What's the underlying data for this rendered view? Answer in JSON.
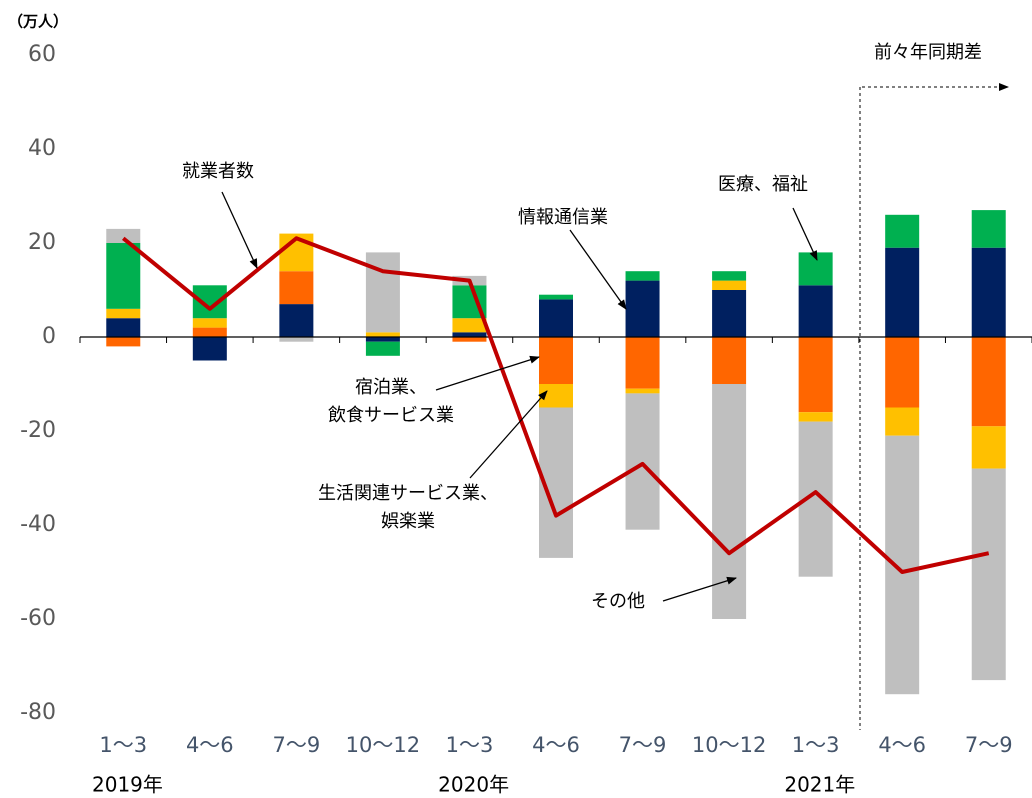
{
  "chart_data": {
    "type": "bar",
    "stacked": true,
    "y_label": "（万人）",
    "annotation": "前々年同期差",
    "categories": [
      "1～3",
      "4～6",
      "7～9",
      "10～12",
      "1～3",
      "4～6",
      "7～9",
      "10～12",
      "1～3",
      "4～6",
      "7～9"
    ],
    "x_groups": [
      "2019年",
      null,
      null,
      null,
      "2020年",
      null,
      null,
      null,
      "2021年",
      null,
      null
    ],
    "ylim": [
      -80,
      60
    ],
    "yticks": [
      -80,
      -60,
      -40,
      -20,
      0,
      20,
      40,
      60
    ],
    "series": [
      {
        "name": "情報通信業",
        "color": "#002060",
        "values": [
          4,
          -5,
          7,
          -1,
          1,
          8,
          12,
          10,
          11,
          19,
          19
        ]
      },
      {
        "name": "宿泊業、\n飲食サービス業",
        "color": "#ff6600",
        "values": [
          -2,
          2,
          7,
          0,
          -1,
          -10,
          -11,
          -10,
          -16,
          -15,
          -19
        ]
      },
      {
        "name": "生活関連サービス業、\n娯楽業",
        "color": "#ffc000",
        "values": [
          2,
          2,
          8,
          1,
          3,
          -5,
          -1,
          2,
          -2,
          -6,
          -9
        ]
      },
      {
        "name": "医療、福祉",
        "color": "#00b050",
        "values": [
          14,
          7,
          0,
          -3,
          7,
          1,
          2,
          2,
          7,
          7,
          8
        ]
      },
      {
        "name": "その他",
        "color": "#bfbfbf",
        "values": [
          3,
          0,
          -1,
          17,
          2,
          -32,
          -29,
          -50,
          -33,
          -55,
          -45
        ]
      },
      {
        "name": "就業者数",
        "type": "line",
        "color": "#c00000",
        "values": [
          21,
          6,
          21,
          14,
          12,
          -38,
          -27,
          -46,
          -33,
          -50,
          -46
        ]
      }
    ]
  }
}
